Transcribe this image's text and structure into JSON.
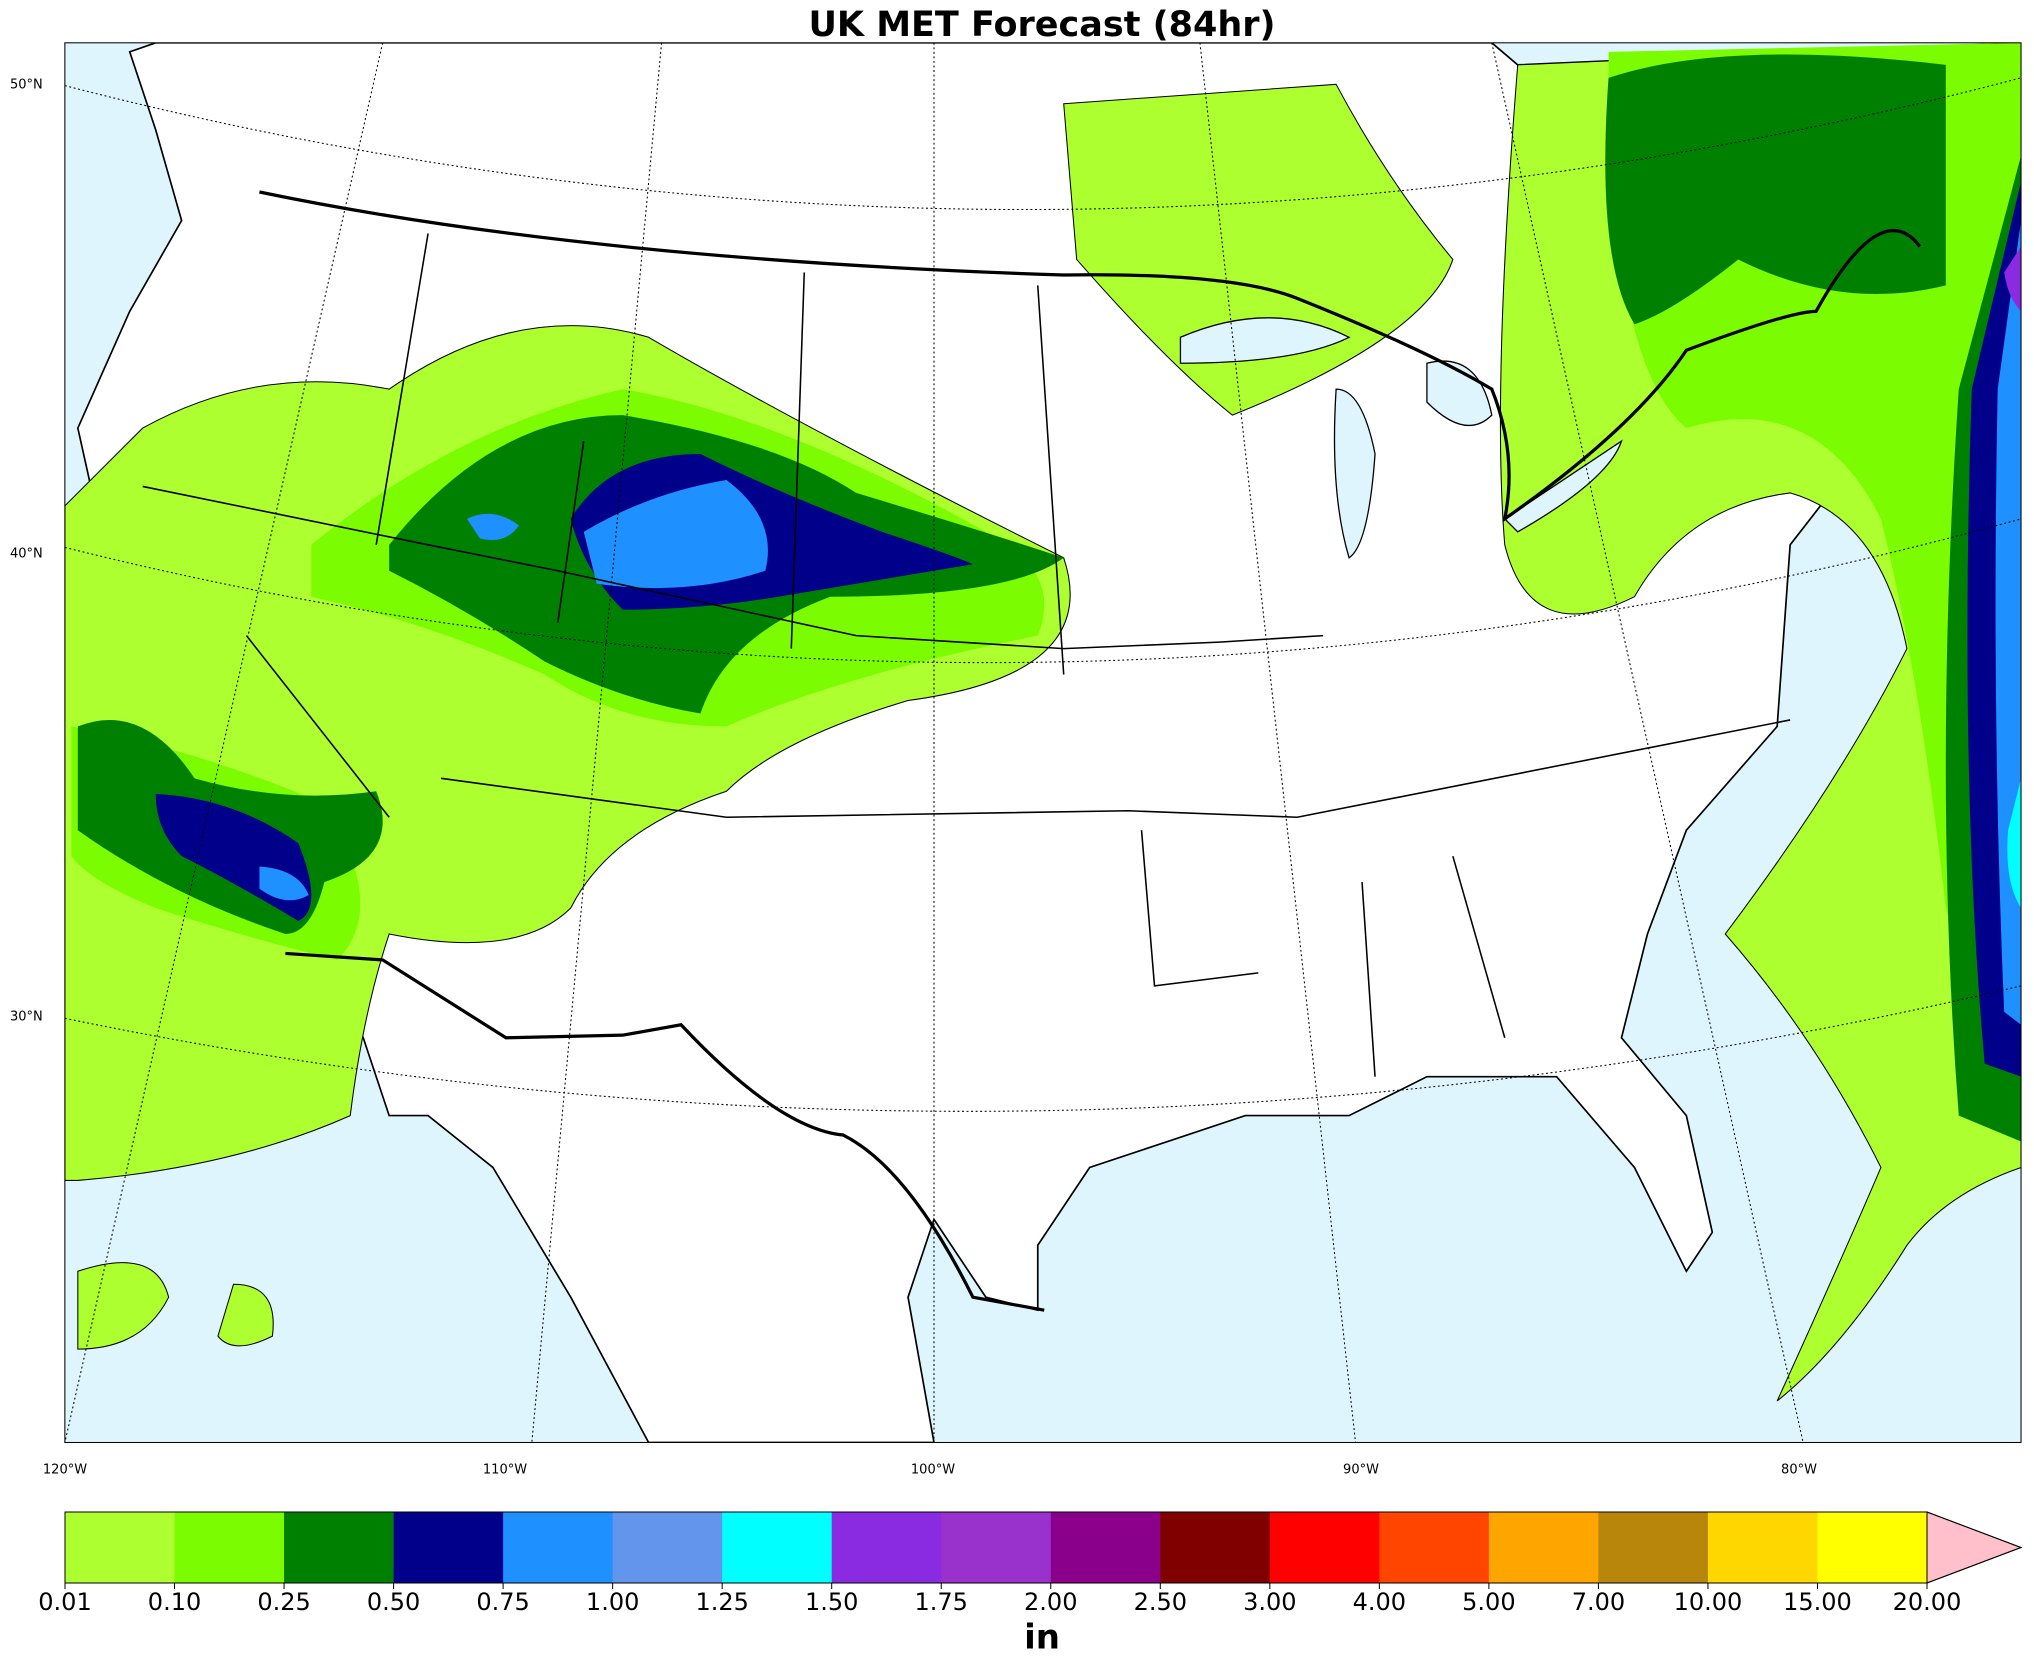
{
  "title": "UK MET Forecast (84hr)",
  "lat_labels": [
    "50°N",
    "40°N",
    "30°N"
  ],
  "lon_labels": [
    "120°W",
    "110°W",
    "100°W",
    "90°W",
    "80°W"
  ],
  "colorbar": {
    "label": "in",
    "ticks": [
      {
        "value": 0.01,
        "label": "0.01"
      },
      {
        "value": 0.1,
        "label": "0.10"
      },
      {
        "value": 0.25,
        "label": "0.25"
      },
      {
        "value": 0.5,
        "label": "0.50"
      },
      {
        "value": 0.75,
        "label": "0.75"
      },
      {
        "value": 1,
        "label": "1.00"
      },
      {
        "value": 1.25,
        "label": "1.25"
      },
      {
        "value": 1.5,
        "label": "1.50"
      },
      {
        "value": 1.75,
        "label": "1.75"
      },
      {
        "value": 2,
        "label": "2.00"
      },
      {
        "value": 2.5,
        "label": "2.50"
      },
      {
        "value": 3,
        "label": "3.00"
      },
      {
        "value": 4,
        "label": "4.00"
      },
      {
        "value": 5,
        "label": "5.00"
      },
      {
        "value": 7,
        "label": "7.00"
      },
      {
        "value": 10,
        "label": "10.00"
      },
      {
        "value": 15,
        "label": "15.00"
      },
      {
        "value": 20,
        "label": "20.00"
      }
    ],
    "colors": [
      "#adff2f",
      "#7cfc00",
      "#008000",
      "#00008b",
      "#1e90ff",
      "#6495ed",
      "#00ffff",
      "#8a2be2",
      "#9932cc",
      "#8b008b",
      "#800000",
      "#ff0000",
      "#ff4500",
      "#ffa500",
      "#b8860b",
      "#ffd700",
      "#ffff00"
    ],
    "extend_color": "#ffc0cb"
  }
}
